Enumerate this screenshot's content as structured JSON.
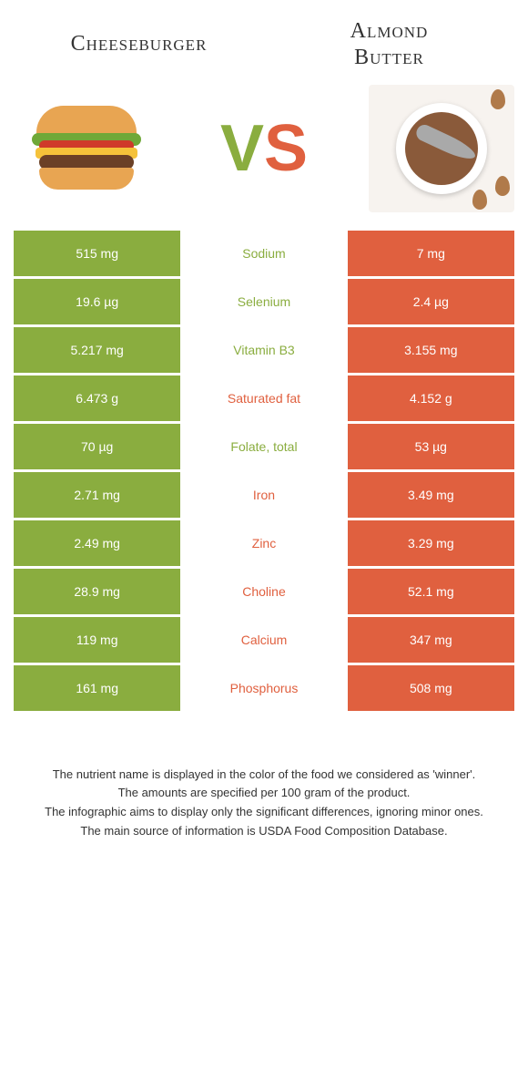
{
  "header": {
    "left_title": "Cheeseburger",
    "right_title_line1": "Almond",
    "right_title_line2": "Butter"
  },
  "vs": {
    "v": "V",
    "s": "S"
  },
  "colors": {
    "left": "#8aad3f",
    "right": "#e0603f",
    "bg": "#ffffff"
  },
  "rows": [
    {
      "left": "515 mg",
      "label": "Sodium",
      "winner": "left",
      "right": "7 mg"
    },
    {
      "left": "19.6 µg",
      "label": "Selenium",
      "winner": "left",
      "right": "2.4 µg"
    },
    {
      "left": "5.217 mg",
      "label": "Vitamin B3",
      "winner": "left",
      "right": "3.155 mg"
    },
    {
      "left": "6.473 g",
      "label": "Saturated fat",
      "winner": "right",
      "right": "4.152 g"
    },
    {
      "left": "70 µg",
      "label": "Folate, total",
      "winner": "left",
      "right": "53 µg"
    },
    {
      "left": "2.71 mg",
      "label": "Iron",
      "winner": "right",
      "right": "3.49 mg"
    },
    {
      "left": "2.49 mg",
      "label": "Zinc",
      "winner": "right",
      "right": "3.29 mg"
    },
    {
      "left": "28.9 mg",
      "label": "Choline",
      "winner": "right",
      "right": "52.1 mg"
    },
    {
      "left": "119 mg",
      "label": "Calcium",
      "winner": "right",
      "right": "347 mg"
    },
    {
      "left": "161 mg",
      "label": "Phosphorus",
      "winner": "right",
      "right": "508 mg"
    }
  ],
  "footer": {
    "line1": "The nutrient name is displayed in the color of the food we considered as 'winner'.",
    "line2": "The amounts are specified per 100 gram of the product.",
    "line3": "The infographic aims to display only the significant differences, ignoring minor ones.",
    "line4": "The main source of information is USDA Food Composition Database."
  }
}
